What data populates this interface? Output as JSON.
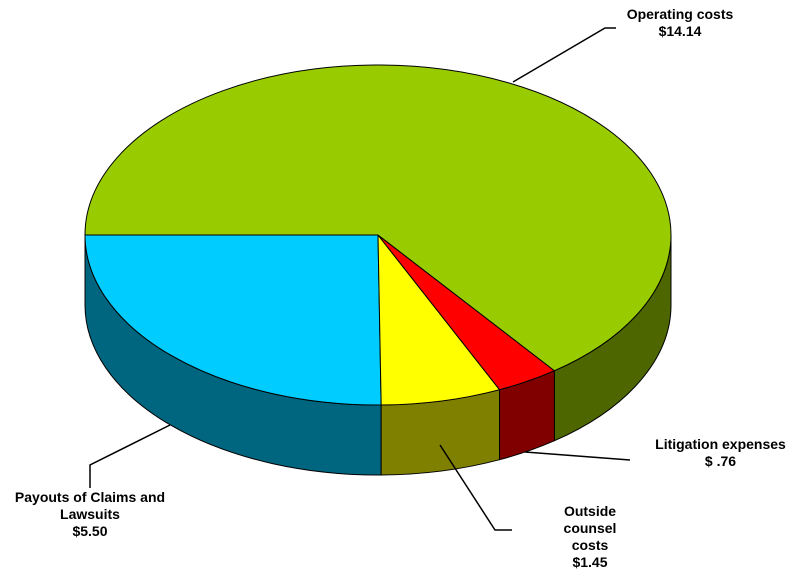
{
  "chart_data": {
    "type": "pie",
    "categories": [
      "Payouts of Claims and Lawsuits",
      "Outside counsel costs",
      "Litigation expenses",
      "Operating costs"
    ],
    "values": [
      5.5,
      1.45,
      0.76,
      14.14
    ],
    "value_labels": [
      "$5.50",
      "$1.45",
      "$ .76",
      "$14.14"
    ],
    "colors": [
      "#00ccff",
      "#ffff00",
      "#ff0000",
      "#99cc00"
    ]
  }
}
